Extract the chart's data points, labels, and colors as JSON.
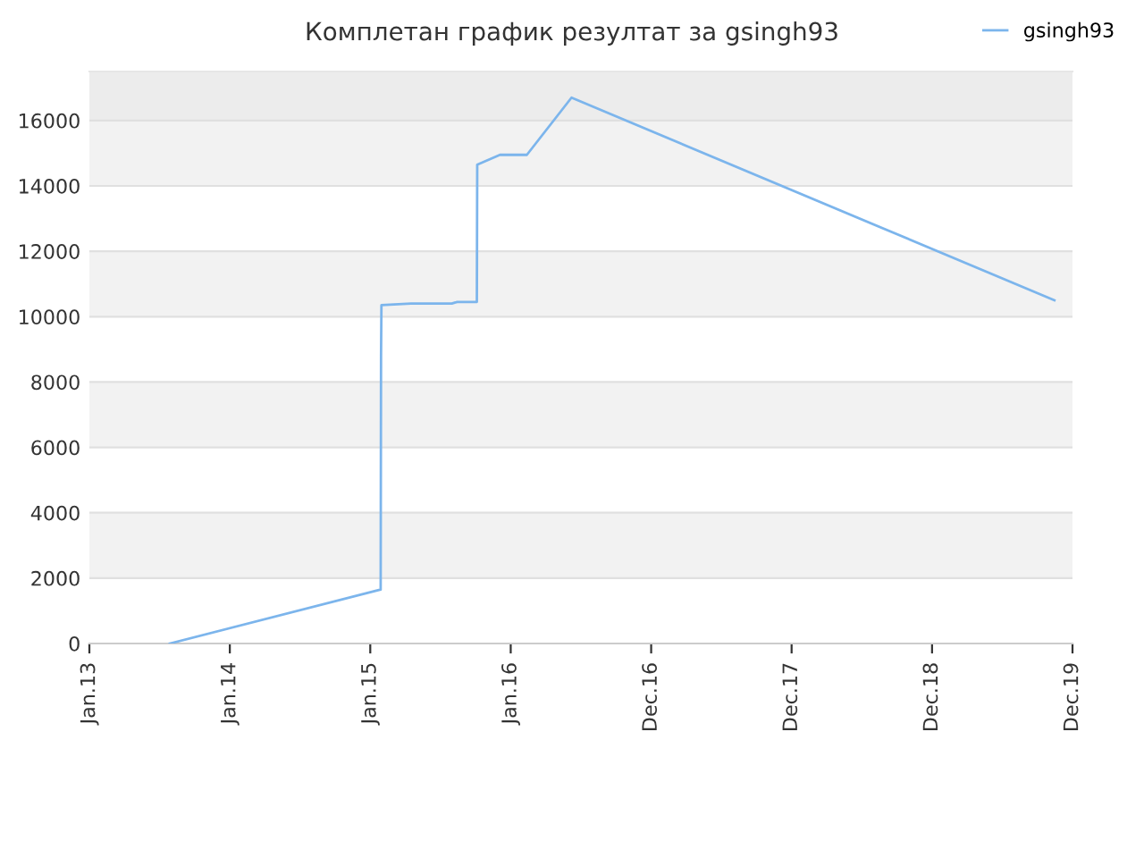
{
  "chart_data": {
    "type": "line",
    "title": "Комплетан график резултат за gsingh93",
    "series": [
      {
        "name": "gsingh93",
        "color": "#7cb5ec",
        "x": [
          "2013-07-29",
          "2015-01-28",
          "2015-01-29",
          "2015-01-30",
          "2015-04-17",
          "2015-08-01",
          "2015-08-15",
          "2015-10-05",
          "2015-10-06",
          "2015-12-04",
          "2016-02-12",
          "2016-06-07",
          "2019-11-14"
        ],
        "values": [
          0,
          1650,
          8800,
          10350,
          10400,
          10400,
          10450,
          10450,
          14650,
          14950,
          14950,
          16700,
          10500
        ]
      }
    ],
    "xlim": [
      "2013-01-01",
      "2019-12-31"
    ],
    "xticks": [
      {
        "value": "2013-01-01",
        "label": "Jan.13"
      },
      {
        "value": "2014-01-01",
        "label": "Jan.14"
      },
      {
        "value": "2015-01-01",
        "label": "Jan.15"
      },
      {
        "value": "2016-01-01",
        "label": "Jan.16"
      },
      {
        "value": "2016-12-31",
        "label": "Dec.16"
      },
      {
        "value": "2017-12-31",
        "label": "Dec.17"
      },
      {
        "value": "2018-12-31",
        "label": "Dec.18"
      },
      {
        "value": "2019-12-31",
        "label": "Dec.19"
      }
    ],
    "ylim": [
      0,
      17500
    ],
    "yticks": [
      0,
      2000,
      4000,
      6000,
      8000,
      10000,
      12000,
      14000,
      16000
    ],
    "bands": [
      {
        "axis": "y",
        "from": 2000,
        "to": 4000,
        "color": "#f2f2f2"
      },
      {
        "axis": "y",
        "from": 6000,
        "to": 8000,
        "color": "#f2f2f2"
      },
      {
        "axis": "y",
        "from": 10000,
        "to": 12000,
        "color": "#f2f2f2"
      },
      {
        "axis": "y",
        "from": 14000,
        "to": 16000,
        "color": "#f2f2f2"
      },
      {
        "axis": "y",
        "from": 16000,
        "to": 17500,
        "color": "#ececec"
      }
    ],
    "grid": "y",
    "legend": "top right",
    "marker": "none",
    "line_style": "solid"
  }
}
